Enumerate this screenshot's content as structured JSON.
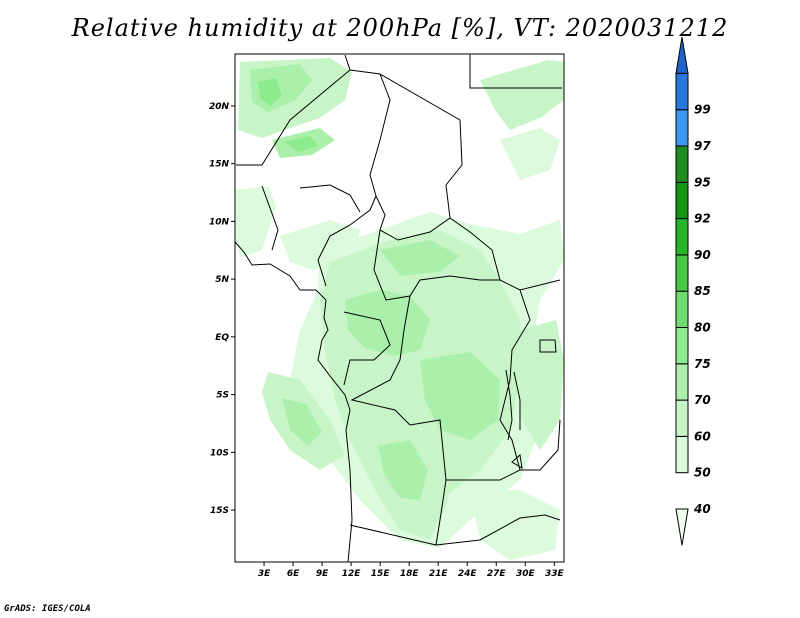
{
  "title": "Relative humidity at 200hPa [%], VT: 2020031212",
  "credit": "GrADS: IGES/COLA",
  "map": {
    "lat_range": [
      -19.5,
      24.5
    ],
    "lon_range": [
      0,
      34
    ],
    "lat_ticks": [
      {
        "value": 20,
        "label": "20N"
      },
      {
        "value": 15,
        "label": "15N"
      },
      {
        "value": 10,
        "label": "10N"
      },
      {
        "value": 5,
        "label": "5N"
      },
      {
        "value": 0,
        "label": "EQ"
      },
      {
        "value": -5,
        "label": "5S"
      },
      {
        "value": -10,
        "label": "10S"
      },
      {
        "value": -15,
        "label": "15S"
      }
    ],
    "lon_ticks": [
      {
        "value": 3,
        "label": "3E"
      },
      {
        "value": 6,
        "label": "6E"
      },
      {
        "value": 9,
        "label": "9E"
      },
      {
        "value": 12,
        "label": "12E"
      },
      {
        "value": 15,
        "label": "15E"
      },
      {
        "value": 18,
        "label": "18E"
      },
      {
        "value": 21,
        "label": "21E"
      },
      {
        "value": 24,
        "label": "24E"
      },
      {
        "value": 27,
        "label": "27E"
      },
      {
        "value": 30,
        "label": "30E"
      },
      {
        "value": 33,
        "label": "33E"
      }
    ]
  },
  "colorbar": {
    "colors": [
      "#f0fff0",
      "#dcfadc",
      "#c8f5c8",
      "#aaf0aa",
      "#8ceb8c",
      "#6edc6e",
      "#46c846",
      "#28b428",
      "#149614",
      "#1e8c1e",
      "#3c96f0",
      "#2878dc",
      "#1e64c8"
    ],
    "labels": [
      "40",
      "50",
      "60",
      "70",
      "75",
      "80",
      "85",
      "90",
      "92",
      "95",
      "97",
      "99"
    ]
  }
}
